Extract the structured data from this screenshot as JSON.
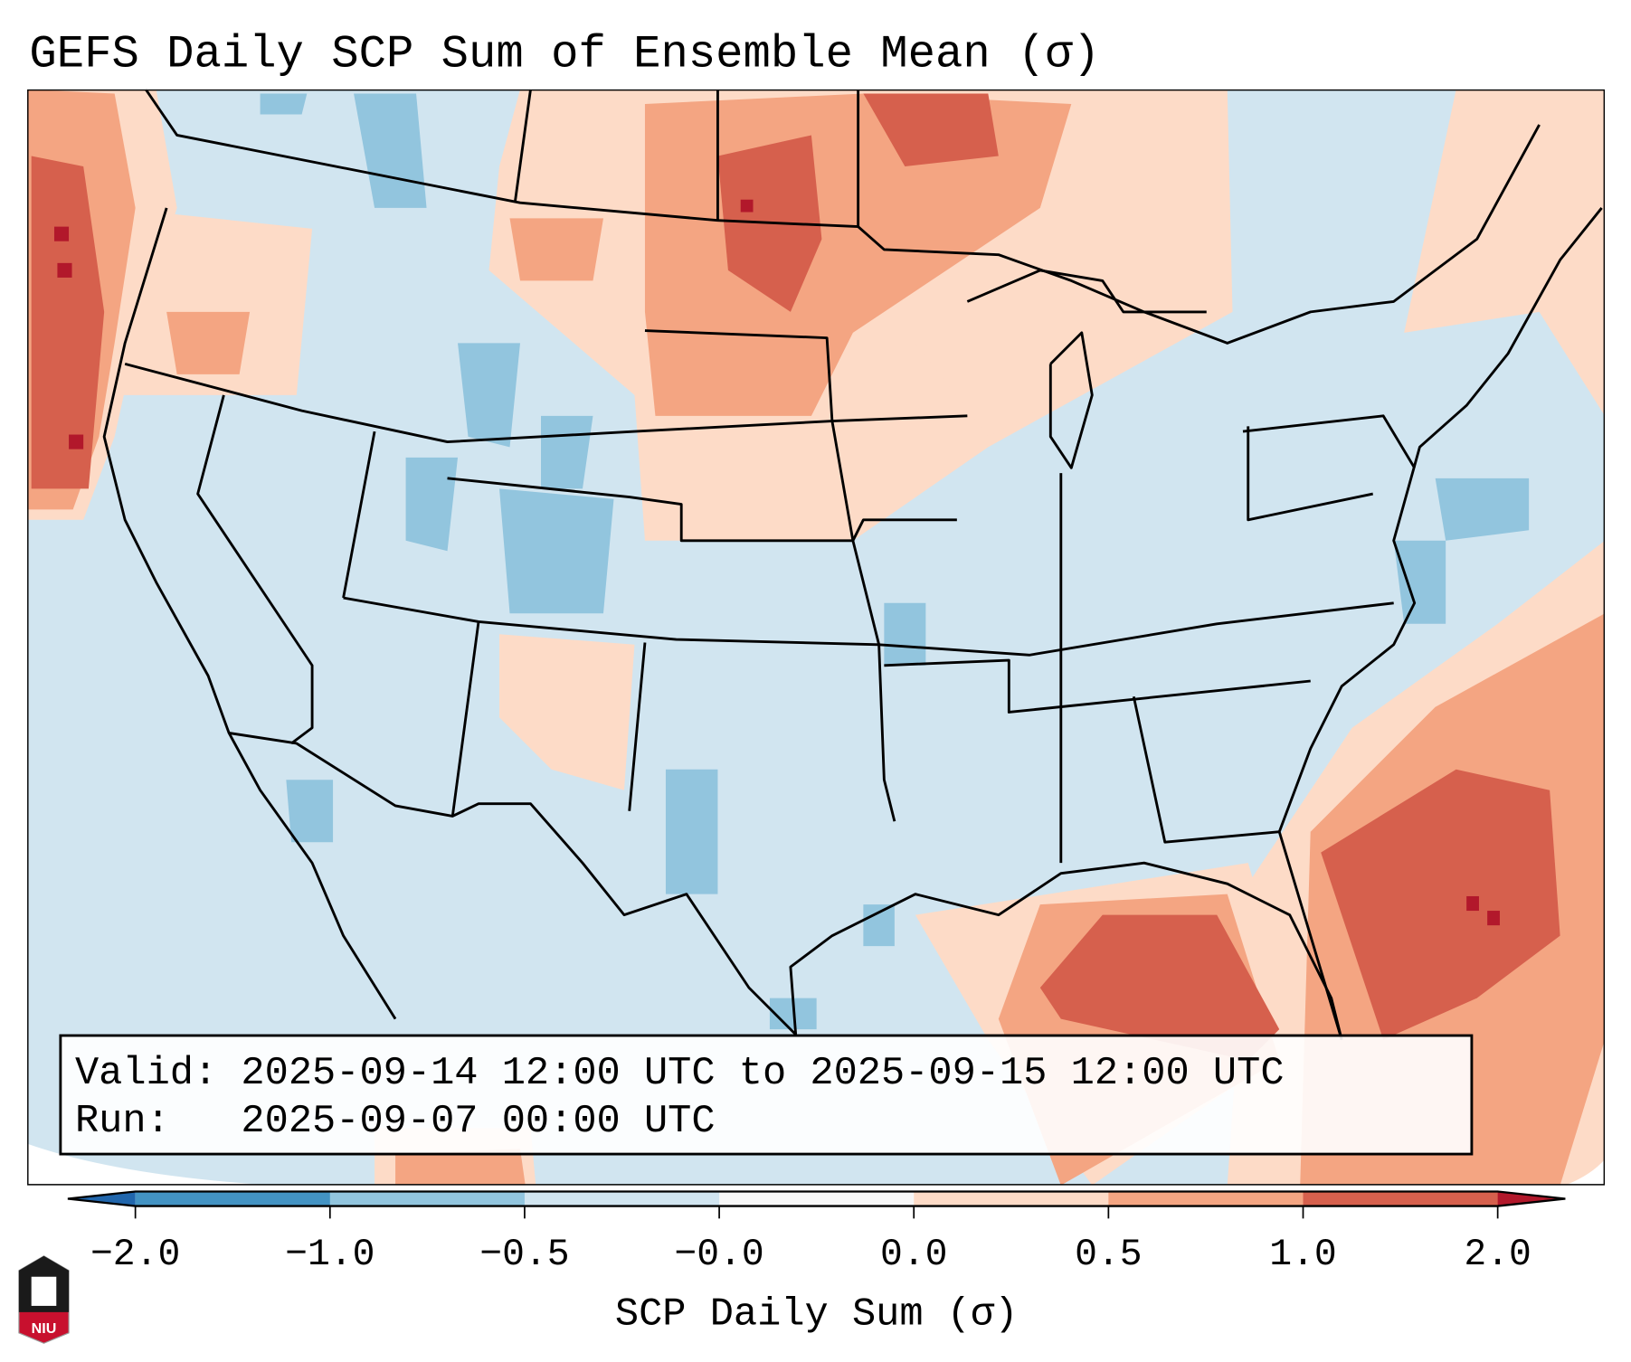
{
  "title": "GEFS Daily SCP Sum of Ensemble Mean (σ)",
  "legend_box": {
    "valid_line": "Valid: 2025-09-14 12:00 UTC to 2025-09-15 12:00 UTC",
    "run_line": "Run:   2025-09-07 00:00 UTC"
  },
  "colorbar": {
    "label": "SCP Daily Sum (σ)",
    "tick_labels": [
      "−2.0",
      "−1.0",
      "−0.5",
      "−0.0",
      "0.0",
      "0.5",
      "1.0",
      "2.0"
    ],
    "under_color": "#2166ac",
    "over_color": "#b2182b",
    "colors": [
      "#4393c3",
      "#92c5de",
      "#d1e5f0",
      "#f7f7f7",
      "#fddbc7",
      "#f4a582",
      "#d6604d"
    ]
  },
  "map": {
    "region": "Contiguous United States",
    "background_color": "#d1e5f0"
  },
  "logo": {
    "text": "NIU"
  }
}
